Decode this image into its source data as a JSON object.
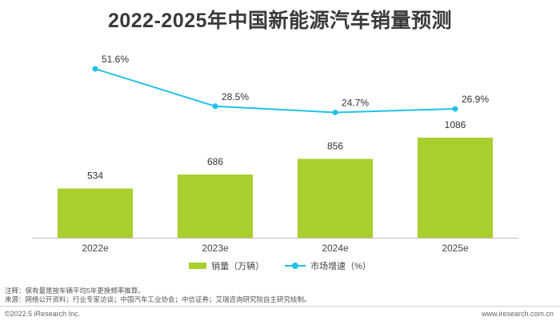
{
  "title": "2022-2025年中国新能源汽车销量预测",
  "legend": {
    "bar_label": "销量（万辆）",
    "line_label": "市场增速（%）"
  },
  "notes": {
    "line1": "注释：保有量是按车辆平均5年更换频率推算。",
    "line2": "来源：网络公开资料；行业专家访谈；中国汽车工业协会；中信证券；艾瑞咨询研究院自主研究绘制。"
  },
  "footer": {
    "left": "©2022.5 iResearch Inc.",
    "right": "www.iresearch.com.cn"
  },
  "colors": {
    "bar": "#a8cf2e",
    "line": "#1fc2ea"
  },
  "chart_data": {
    "type": "bar",
    "categories": [
      "2022e",
      "2023e",
      "2024e",
      "2025e"
    ],
    "series": [
      {
        "name": "销量（万辆）",
        "type": "bar",
        "values": [
          534,
          686,
          856,
          1086
        ],
        "labels": [
          "534",
          "686",
          "856",
          "1086"
        ]
      },
      {
        "name": "市场增速（%）",
        "type": "line",
        "values": [
          51.6,
          28.5,
          24.7,
          26.9
        ],
        "labels": [
          "51.6%",
          "28.5%",
          "24.7%",
          "26.9%"
        ]
      }
    ],
    "title": "2022-2025年中国新能源汽车销量预测",
    "xlabel": "",
    "ylabel": "",
    "grid": false,
    "legend_position": "bottom"
  }
}
